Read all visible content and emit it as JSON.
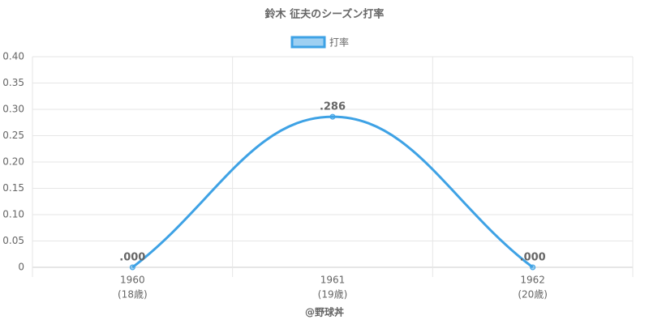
{
  "chart_data": {
    "type": "line",
    "title": "鈴木 征夫のシーズン打率",
    "categories": [
      [
        "1960",
        "(18歳)"
      ],
      [
        "1961",
        "(19歳)"
      ],
      [
        "1962",
        "(20歳)"
      ]
    ],
    "series": [
      {
        "name": "打率",
        "color": "#3ea2e5",
        "values": [
          0,
          0.286,
          0
        ],
        "value_labels": [
          ".000",
          ".286",
          ".000"
        ]
      }
    ],
    "ylim": [
      0,
      0.4
    ],
    "yticks": [
      0,
      0.05,
      {
        "value": 0.1,
        "label": "0.10"
      },
      0.15,
      {
        "value": 0.2,
        "label": "0.20"
      },
      0.25,
      {
        "value": 0.3,
        "label": "0.30"
      },
      0.35,
      {
        "value": 0.4,
        "label": "0.40"
      }
    ],
    "grid": true,
    "legend": "top",
    "credit": "@野球丼"
  }
}
